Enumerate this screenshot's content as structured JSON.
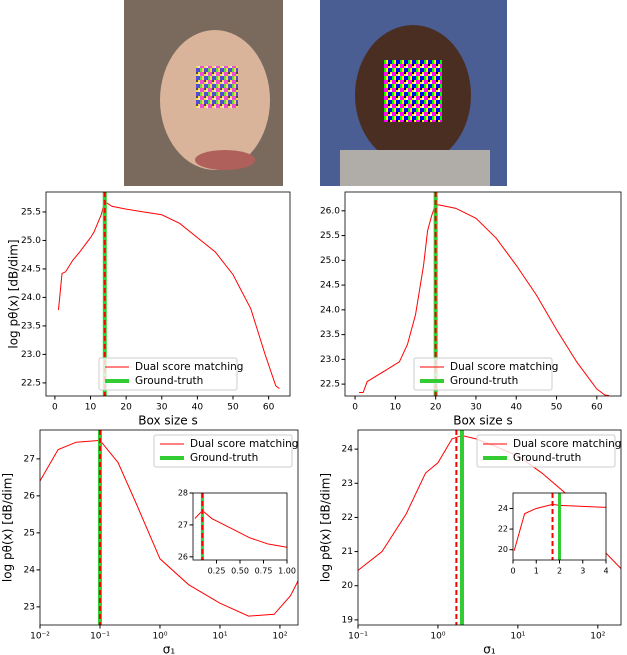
{
  "chart_data": [
    {
      "type": "line",
      "xlabel": "Box size s",
      "ylabel": "log pθ(x) [dB/dim]",
      "xlim": [
        -2.5,
        66
      ],
      "ylim": [
        22.27,
        25.85
      ],
      "xticks": [
        0,
        10,
        20,
        30,
        40,
        50,
        60
      ],
      "yticks": [
        22.5,
        {
          "value": 23,
          "label": "23.0"
        },
        23.5,
        {
          "value": 24,
          "label": "24.0"
        },
        24.5,
        {
          "value": 25,
          "label": "25.0"
        },
        25.5
      ],
      "legend": "lower center",
      "series": [
        {
          "name": "Dual score matching",
          "color": "#ff0000",
          "x": [
            1,
            2,
            3,
            5,
            7,
            10,
            11,
            12,
            13,
            14,
            16,
            20,
            25,
            30,
            35,
            40,
            45,
            50,
            55,
            59,
            62,
            63
          ],
          "values": [
            23.78,
            24.42,
            24.45,
            24.65,
            24.8,
            25.05,
            25.15,
            25.3,
            25.45,
            25.68,
            25.6,
            25.55,
            25.5,
            25.45,
            25.3,
            25.05,
            24.8,
            24.4,
            23.8,
            23.0,
            22.45,
            22.4
          ]
        },
        {
          "name": "Ground-truth",
          "color": "#33cc33",
          "x_value": 14
        }
      ],
      "estimate_x": 14
    },
    {
      "type": "line",
      "xlabel": "Box size s",
      "ylabel": "",
      "xlim": [
        -2.5,
        66
      ],
      "ylim": [
        22.26,
        26.38
      ],
      "xticks": [
        0,
        10,
        20,
        30,
        40,
        50,
        60
      ],
      "yticks": [
        22.5,
        {
          "value": 23,
          "label": "23.0"
        },
        23.5,
        {
          "value": 24,
          "label": "24.0"
        },
        24.5,
        {
          "value": 25,
          "label": "25.0"
        },
        25.5,
        {
          "value": 26,
          "label": "26.0"
        }
      ],
      "legend": "lower center",
      "series": [
        {
          "name": "Dual score matching",
          "color": "#ff0000",
          "x": [
            1,
            2,
            3,
            5,
            8,
            11,
            13,
            15,
            17,
            18,
            19,
            20,
            22,
            25,
            30,
            35,
            40,
            45,
            50,
            55,
            60,
            62,
            63
          ],
          "values": [
            22.33,
            22.33,
            22.55,
            22.65,
            22.8,
            22.95,
            23.3,
            23.9,
            24.9,
            25.6,
            25.9,
            26.13,
            26.1,
            26.05,
            25.85,
            25.45,
            24.9,
            24.3,
            23.6,
            22.95,
            22.4,
            22.28,
            22.27
          ]
        },
        {
          "name": "Ground-truth",
          "color": "#33cc33",
          "x_value": 20
        }
      ],
      "estimate_x": 20
    },
    {
      "type": "line",
      "xlabel": "σ₁",
      "ylabel": "log pθ(x) [dB/dim]",
      "xscale": "log",
      "xlim": [
        0.01,
        200
      ],
      "ylim": [
        22.51,
        27.78
      ],
      "xticks": [
        {
          "value": 0.01,
          "label": "10⁻²"
        },
        {
          "value": 0.1,
          "label": "10⁻¹"
        },
        {
          "value": 1,
          "label": "10⁰"
        },
        {
          "value": 10,
          "label": "10¹"
        },
        {
          "value": 100,
          "label": "10²"
        }
      ],
      "yticks": [
        23,
        24,
        25,
        26,
        27
      ],
      "legend": "upper right",
      "series": [
        {
          "name": "Dual score matching",
          "color": "#ff0000",
          "x": [
            0.01,
            0.02,
            0.04,
            0.1,
            0.2,
            0.4,
            1,
            3,
            10,
            30,
            80,
            150,
            200
          ],
          "values": [
            26.4,
            27.25,
            27.45,
            27.5,
            26.9,
            25.8,
            24.3,
            23.6,
            23.1,
            22.75,
            22.8,
            23.3,
            23.7
          ]
        },
        {
          "name": "Ground-truth",
          "color": "#33cc33",
          "x_value": 0.1
        }
      ],
      "estimate_x": 0.1,
      "inset": {
        "xlim": [
          0,
          1
        ],
        "ylim": [
          25.9,
          28
        ],
        "xticks": [
          0.25,
          {
            "value": 0.5,
            "label": "0.50"
          },
          0.75,
          {
            "value": 1,
            "label": "1.00"
          }
        ],
        "yticks": [
          26,
          27,
          28
        ],
        "series": [
          {
            "color": "#ff0000",
            "x": [
              0.02,
              0.1,
              0.2,
              0.4,
              0.6,
              0.8,
              1.0
            ],
            "values": [
              27.2,
              27.45,
              27.2,
              26.9,
              26.6,
              26.4,
              26.3
            ]
          },
          {
            "color": "#33cc33",
            "x_value": 0.1
          }
        ],
        "estimate_x": 0.1
      }
    },
    {
      "type": "line",
      "xlabel": "σ₁",
      "ylabel": "log pθ(x) [dB/dim]",
      "xscale": "log",
      "xlim": [
        0.1,
        195
      ],
      "ylim": [
        18.85,
        24.56
      ],
      "xticks": [
        {
          "value": 0.1,
          "label": "10⁻¹"
        },
        {
          "value": 1,
          "label": "10⁰"
        },
        {
          "value": 10,
          "label": "10¹"
        },
        {
          "value": 100,
          "label": "10²"
        }
      ],
      "yticks": [
        19,
        20,
        21,
        22,
        23,
        24
      ],
      "legend": "upper right",
      "series": [
        {
          "name": "Dual score matching",
          "color": "#ff0000",
          "x": [
            0.1,
            0.2,
            0.4,
            0.7,
            1,
            1.5,
            2,
            3,
            5,
            10,
            20,
            50,
            100,
            195
          ],
          "values": [
            20.45,
            21.0,
            22.1,
            23.3,
            23.6,
            24.3,
            24.4,
            24.3,
            24.1,
            23.8,
            23.3,
            22.5,
            21.2,
            20.5
          ]
        },
        {
          "name": "Ground-truth",
          "color": "#33cc33",
          "x_value": 2
        }
      ],
      "estimate_x": 1.7,
      "inset": {
        "xlim": [
          0,
          4
        ],
        "ylim": [
          19,
          25.5
        ],
        "xticks": [
          0,
          1,
          2,
          3,
          4
        ],
        "yticks": [
          20,
          22,
          24
        ],
        "series": [
          {
            "color": "#ff0000",
            "x": [
              0.05,
              0.5,
              1,
              1.7,
              2,
              3,
              4
            ],
            "values": [
              19.9,
              23.5,
              24,
              24.4,
              24.3,
              24.2,
              24.1
            ]
          },
          {
            "color": "#33cc33",
            "x_value": 2
          }
        ],
        "estimate_x": 1.7
      }
    }
  ]
}
